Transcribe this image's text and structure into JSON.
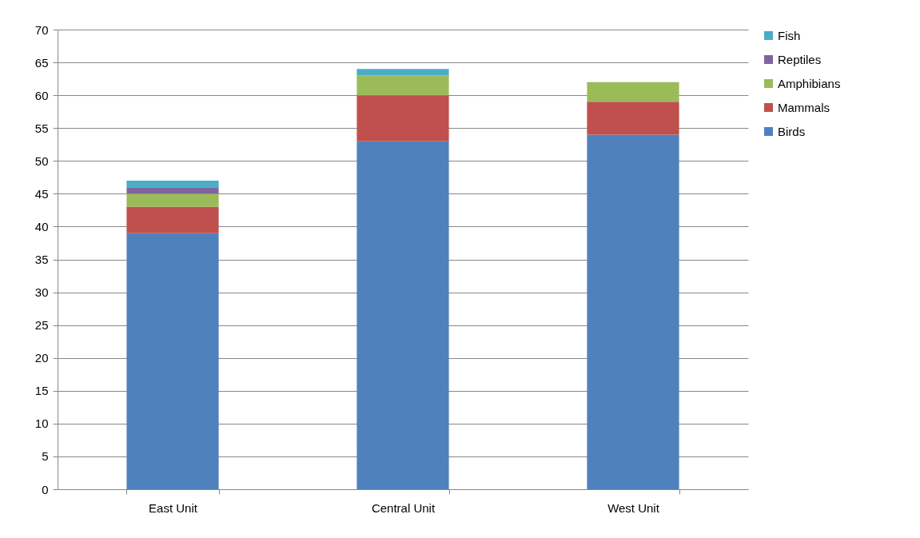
{
  "chart_data": {
    "type": "bar",
    "stacked": true,
    "categories": [
      "East Unit",
      "Central Unit",
      "West Unit"
    ],
    "series": [
      {
        "name": "Birds",
        "color": "#4f81bd",
        "values": [
          39,
          53,
          54
        ]
      },
      {
        "name": "Mammals",
        "color": "#c0504d",
        "values": [
          4,
          7,
          5
        ]
      },
      {
        "name": "Amphibians",
        "color": "#9bbb59",
        "values": [
          2,
          3,
          3
        ]
      },
      {
        "name": "Reptiles",
        "color": "#8064a2",
        "values": [
          1,
          0,
          0
        ]
      },
      {
        "name": "Fish",
        "color": "#4bacc6",
        "values": [
          1,
          1,
          0
        ]
      }
    ],
    "ylim": [
      0,
      70
    ],
    "yticks": [
      0,
      5,
      10,
      15,
      20,
      25,
      30,
      35,
      40,
      45,
      50,
      55,
      60,
      65,
      70
    ],
    "grid": "y",
    "legend": "right"
  }
}
